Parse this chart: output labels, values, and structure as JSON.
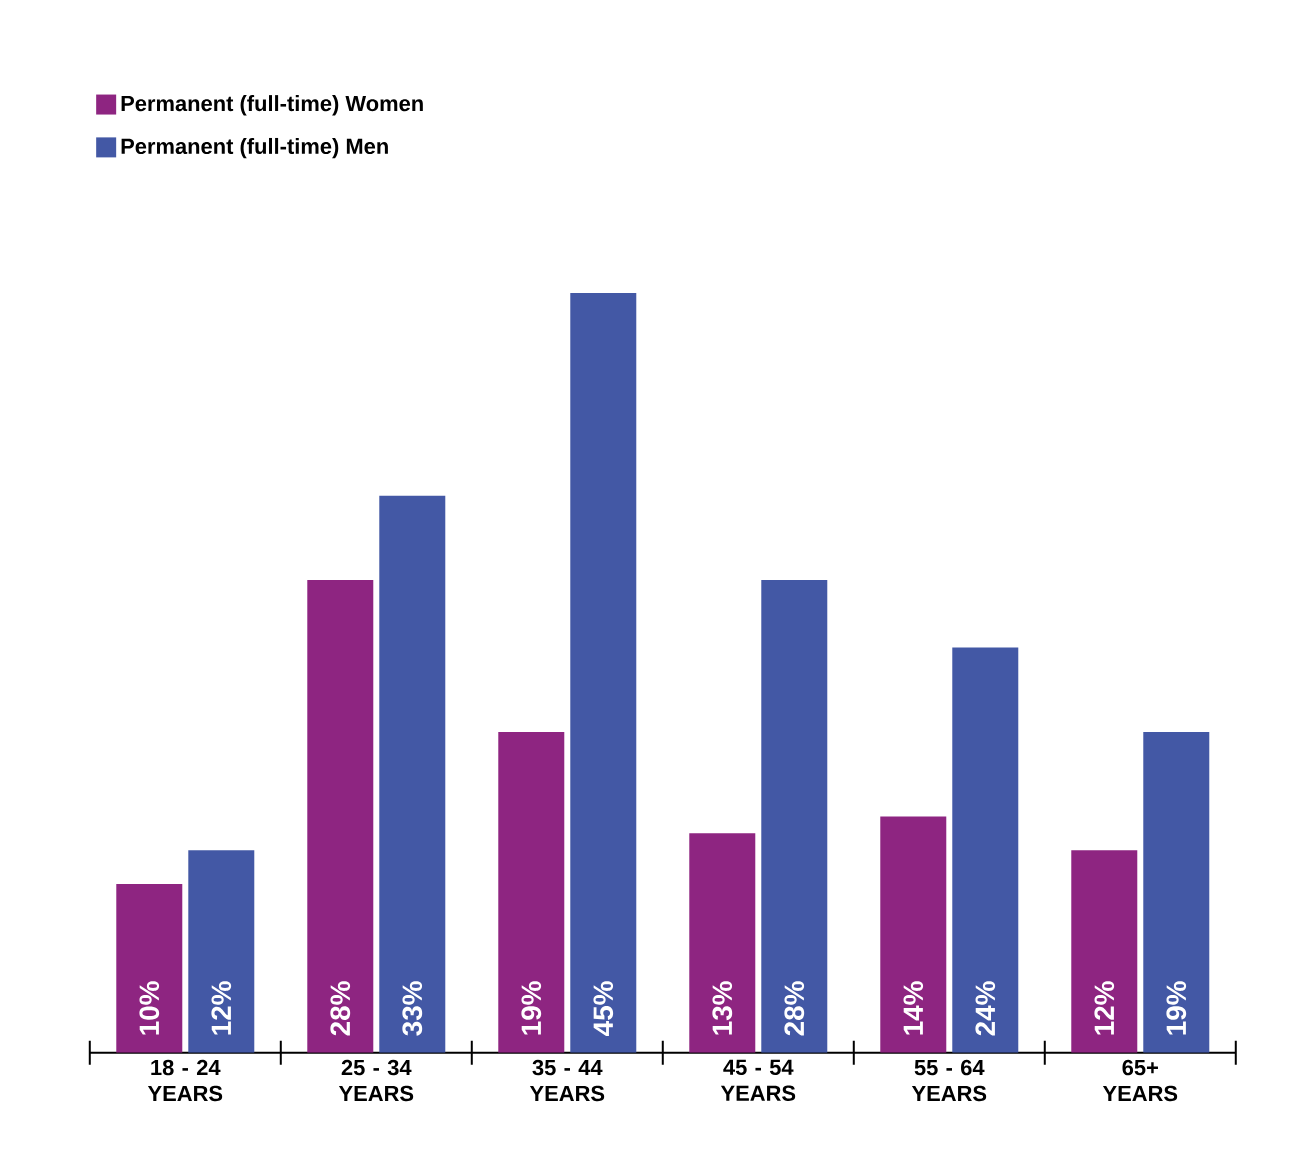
{
  "chart_data": {
    "type": "bar",
    "categories": [
      "18 - 24 YEARS",
      "25 - 34 YEARS",
      "35 - 44 YEARS",
      "45 - 54 YEARS",
      "55 - 64 YEARS",
      "65+ YEARS"
    ],
    "series": [
      {
        "name": "Permanent (full-time) Women",
        "color": "#8e2581",
        "values": [
          10,
          28,
          19,
          13,
          14,
          12
        ],
        "value_labels": [
          "10%",
          "28%",
          "19%",
          "13%",
          "14%",
          "12%"
        ]
      },
      {
        "name": "Permanent (full-time) Men",
        "color": "#4358a5",
        "values": [
          12,
          33,
          45,
          28,
          24,
          19
        ],
        "value_labels": [
          "12%",
          "33%",
          "45%",
          "28%",
          "24%",
          "19%"
        ]
      }
    ],
    "legend": "top left",
    "grid": false
  }
}
